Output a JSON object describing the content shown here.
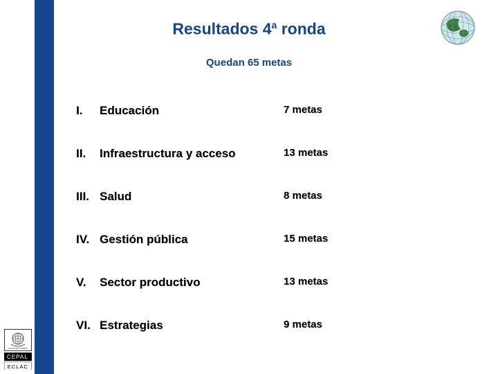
{
  "colors": {
    "sidebar": "#14458f",
    "title": "#14458f",
    "text": "#000000",
    "background": "#ffffff"
  },
  "title_main": "Resultados 4",
  "title_super": "a",
  "title_tail": " ronda",
  "subtitle": "Quedan 65 metas",
  "items": [
    {
      "numeral": "I.",
      "name": "Educación",
      "count": "7 metas"
    },
    {
      "numeral": "II.",
      "name": "Infraestructura y acceso",
      "count": "13 metas"
    },
    {
      "numeral": "III.",
      "name": "Salud",
      "count": "8 metas"
    },
    {
      "numeral": "IV.",
      "name": "Gestión pública",
      "count": "15 metas"
    },
    {
      "numeral": "V.",
      "name": "Sector productivo",
      "count": "13 metas"
    },
    {
      "numeral": "VI.",
      "name": "Estrategias",
      "count": "9 metas"
    }
  ],
  "footer_logo_colors": {
    "row2": [
      "#ffffff",
      "#ffffff",
      "#ffffff",
      "#ffffff",
      "#ffffff"
    ],
    "row3": [
      "#000000",
      "#000000",
      "#000000",
      "#000000",
      "#000000"
    ]
  }
}
